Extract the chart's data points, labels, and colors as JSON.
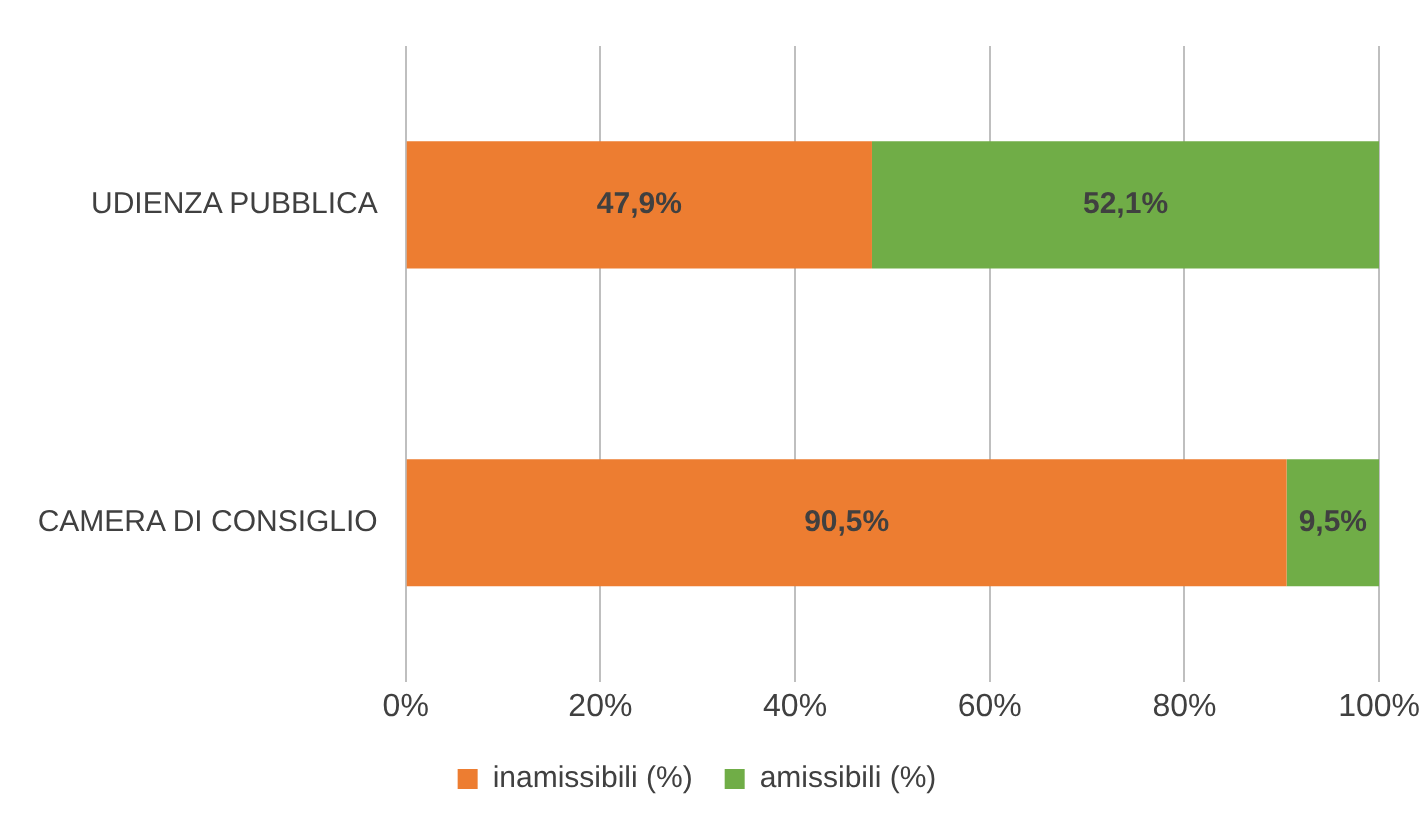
{
  "chart_data": {
    "type": "bar",
    "orientation": "horizontal",
    "stacked": true,
    "categories": [
      "UDIENZA PUBBLICA",
      "CAMERA DI CONSIGLIO"
    ],
    "series": [
      {
        "name": "inamissibili (%)",
        "color": "#ed7d31",
        "values": [
          47.9,
          90.5
        ],
        "value_labels": [
          "47,9%",
          "90,5%"
        ]
      },
      {
        "name": "amissibili (%)",
        "color": "#70ad47",
        "values": [
          52.1,
          9.5
        ],
        "value_labels": [
          "52,1%",
          "9,5%"
        ]
      }
    ],
    "xlim": [
      0,
      100
    ],
    "xticks": [
      {
        "value": 0,
        "label": "0%"
      },
      {
        "value": 20,
        "label": "20%"
      },
      {
        "value": 40,
        "label": "40%"
      },
      {
        "value": 60,
        "label": "60%"
      },
      {
        "value": 80,
        "label": "80%"
      },
      {
        "value": 100,
        "label": "100%"
      }
    ],
    "grid": "x",
    "legend": "bottom"
  }
}
